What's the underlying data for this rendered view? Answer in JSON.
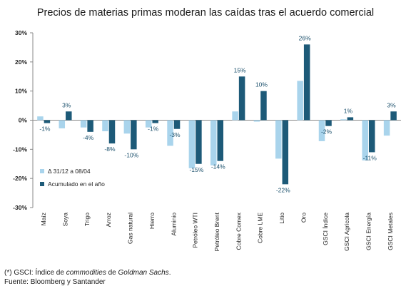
{
  "chart_data": {
    "type": "bar",
    "title": "Precios de materias primas moderan las caídas tras el acuerdo comercial",
    "categories": [
      "Maíz",
      "Soya",
      "Trigo",
      "Arroz",
      "Gas natural",
      "Hierro",
      "Aluminio",
      "Petróleo WTI",
      "Petróleo Brent",
      "Cobre Comex",
      "Cobre LME",
      "Litio",
      "Oro",
      "GSCI Índice",
      "GSCI Agrícola",
      "GSCI Energía",
      "GSCI Metales"
    ],
    "series": [
      {
        "name": "Δ 31/12 a 08/04",
        "color": "#a9d4ec",
        "values": [
          1.3,
          -2.8,
          -2.5,
          -3.8,
          -4.6,
          -2.5,
          -8.8,
          -16.5,
          -15.5,
          3.0,
          -0.5,
          -13.2,
          13.5,
          -7.2,
          0.3,
          -13.8,
          -5.3
        ]
      },
      {
        "name": "Acumulado en el año",
        "color": "#1d5a78",
        "values": [
          -1,
          3,
          -4,
          -8,
          -10,
          -1,
          -3,
          -15,
          -14,
          15,
          10,
          -22,
          26,
          -2,
          1,
          -11,
          3
        ],
        "labels": [
          "-1%",
          "3%",
          "-4%",
          "-8%",
          "-10%",
          "-1%",
          "-3%",
          "-15%",
          "-14%",
          "15%",
          "10%",
          "-22%",
          "26%",
          "-2%",
          "1%",
          "-11%",
          "3%"
        ]
      }
    ],
    "ylim": [
      -30,
      30
    ],
    "yticks": [
      30,
      20,
      10,
      0,
      -10,
      -20,
      -30
    ],
    "ytick_labels": [
      "30%",
      "20%",
      "10%",
      "0%",
      "-10%",
      "-20%",
      "-30%"
    ],
    "grid": false,
    "legend_position": "bottom-left"
  },
  "footnote": {
    "line1_prefix": "(*) GSCI: Índice de ",
    "line1_italic1": "commodities",
    "line1_mid": " de ",
    "line1_italic2": "Goldman Sachs",
    "line1_suffix": ".",
    "line2": "Fuente: Bloomberg y Santander"
  }
}
